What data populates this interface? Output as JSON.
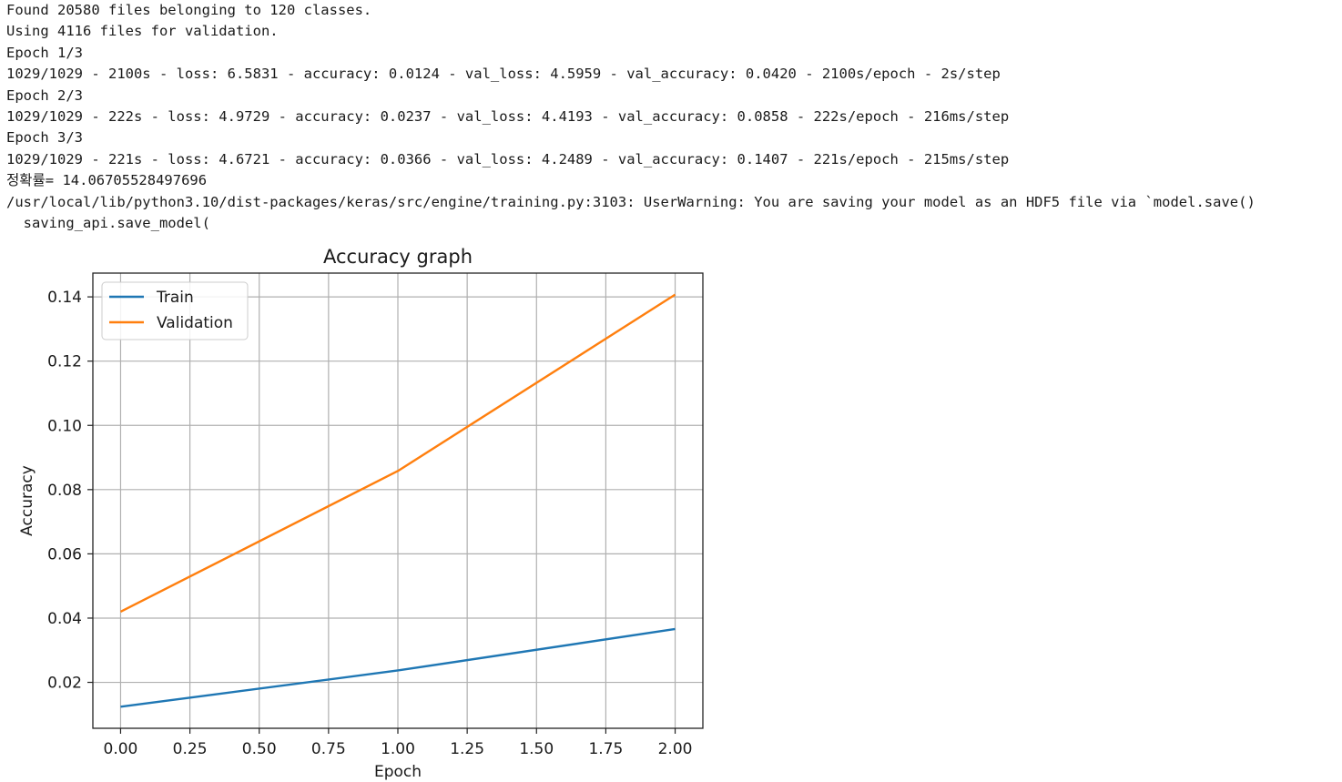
{
  "console": {
    "lines": [
      "Found 20580 files belonging to 120 classes.",
      "Using 4116 files for validation.",
      "Epoch 1/3",
      "1029/1029 - 2100s - loss: 6.5831 - accuracy: 0.0124 - val_loss: 4.5959 - val_accuracy: 0.0420 - 2100s/epoch - 2s/step",
      "Epoch 2/3",
      "1029/1029 - 222s - loss: 4.9729 - accuracy: 0.0237 - val_loss: 4.4193 - val_accuracy: 0.0858 - 222s/epoch - 216ms/step",
      "Epoch 3/3",
      "1029/1029 - 221s - loss: 4.6721 - accuracy: 0.0366 - val_loss: 4.2489 - val_accuracy: 0.1407 - 221s/epoch - 215ms/step",
      "정확률= 14.06705528497696",
      "/usr/local/lib/python3.10/dist-packages/keras/src/engine/training.py:3103: UserWarning: You are saving your model as an HDF5 file via `model.save()",
      "  saving_api.save_model("
    ]
  },
  "chart_data": {
    "type": "line",
    "title": "Accuracy graph",
    "xlabel": "Epoch",
    "ylabel": "Accuracy",
    "x": [
      0,
      1,
      2
    ],
    "series": [
      {
        "name": "Train",
        "values": [
          0.0124,
          0.0237,
          0.0366
        ],
        "color": "#1f77b4"
      },
      {
        "name": "Validation",
        "values": [
          0.042,
          0.0858,
          0.1407
        ],
        "color": "#ff7f0e"
      }
    ],
    "xlim": [
      -0.1,
      2.1
    ],
    "ylim": [
      0.0057,
      0.1474
    ],
    "xticks": [
      "0.00",
      "0.25",
      "0.50",
      "0.75",
      "1.00",
      "1.25",
      "1.50",
      "1.75",
      "2.00"
    ],
    "yticks": [
      "0.02",
      "0.04",
      "0.06",
      "0.08",
      "0.10",
      "0.12",
      "0.14"
    ],
    "grid": true,
    "legend": "upper-left"
  }
}
